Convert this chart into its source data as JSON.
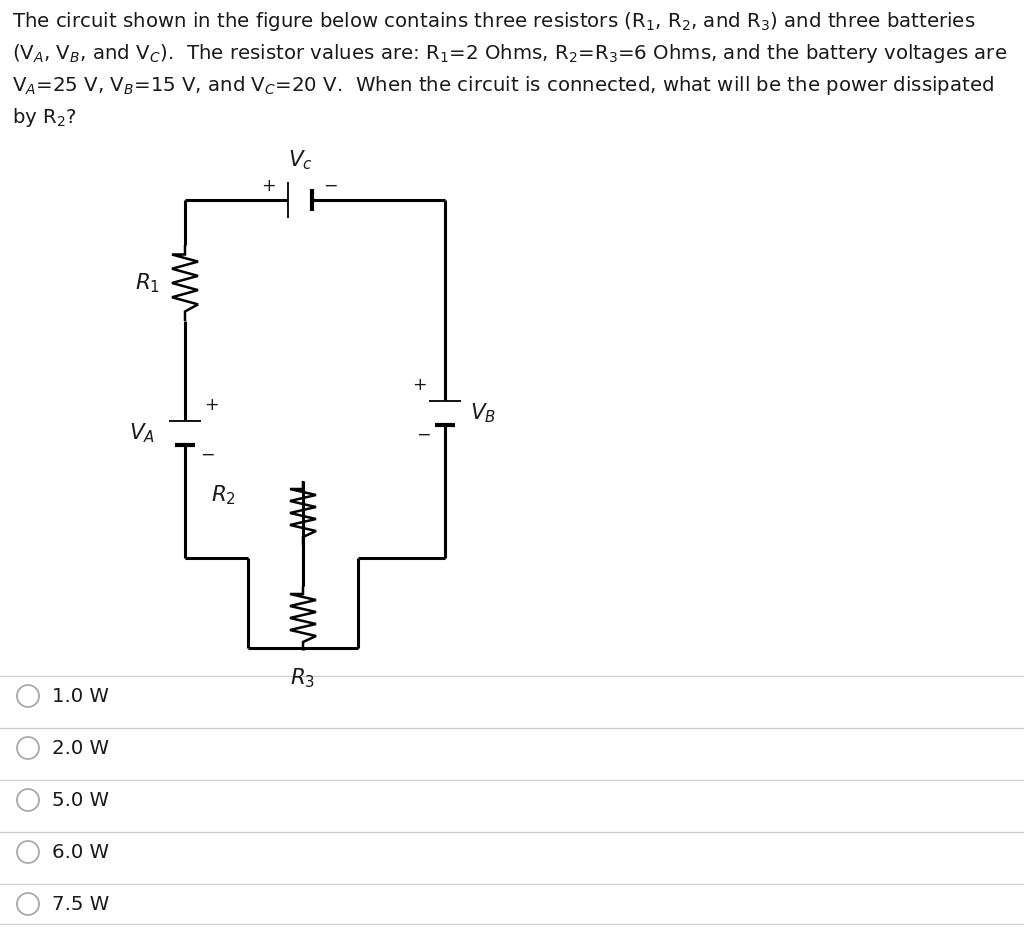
{
  "background_color": "#ffffff",
  "text_color": "#1a1a1a",
  "line_color": "#000000",
  "choices": [
    "1.0 W",
    "2.0 W",
    "5.0 W",
    "6.0 W",
    "7.5 W"
  ],
  "problem_text_lines": [
    "The circuit shown in the figure below contains three resistors (R$_1$, R$_2$, and R$_3$) and three batteries",
    "(V$_A$, V$_B$, and V$_C$).  The resistor values are: R$_1$=2 Ohms, R$_2$=R$_3$=6 Ohms, and the battery voltages are",
    "V$_A$=25 V, V$_B$=15 V, and V$_C$=20 V.  When the circuit is connected, what will be the power dissipated",
    "by R$_2$?"
  ]
}
